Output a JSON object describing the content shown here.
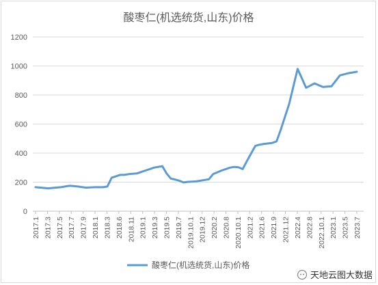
{
  "chart_data": {
    "type": "line",
    "title": "酸枣仁(机选统货,山东)价格",
    "xlabel": "",
    "ylabel": "",
    "ylim": [
      0,
      1200
    ],
    "yticks": [
      0,
      200,
      400,
      600,
      800,
      1000,
      1200
    ],
    "grid": true,
    "legend_position": "bottom",
    "series_color": "#5b9bd5",
    "tick_labels": [
      "2017.1",
      "2017.3",
      "2017.5",
      "2017.7",
      "2017.9",
      "2018.1",
      "2018.3",
      "2018.6",
      "2018.11",
      "2019.1",
      "2019.3",
      "2019.5",
      "2019.7",
      "2019.10.1",
      "2019.12",
      "2020.2",
      "2020.8",
      "2020.10.1",
      "2021.2",
      "2021.6",
      "2021.9",
      "2021.12",
      "2022.4",
      "2022.8",
      "2022.10.1",
      "2023.1",
      "2023.5",
      "2023.7"
    ],
    "series": [
      {
        "name": "酸枣仁(机选统货,山东)价格",
        "points": [
          [
            0,
            165
          ],
          [
            1,
            160
          ],
          [
            1.5,
            157
          ],
          [
            2,
            160
          ],
          [
            3,
            165
          ],
          [
            3.5,
            170
          ],
          [
            4,
            175
          ],
          [
            5,
            170
          ],
          [
            6,
            162
          ],
          [
            7,
            165
          ],
          [
            8,
            165
          ],
          [
            8.5,
            170
          ],
          [
            9,
            230
          ],
          [
            10,
            250
          ],
          [
            10.5,
            250
          ],
          [
            11,
            255
          ],
          [
            12,
            260
          ],
          [
            12.5,
            270
          ],
          [
            13,
            280
          ],
          [
            13.5,
            290
          ],
          [
            14,
            300
          ],
          [
            15,
            310
          ],
          [
            15.5,
            260
          ],
          [
            16,
            225
          ],
          [
            16.5,
            218
          ],
          [
            17,
            210
          ],
          [
            17.5,
            198
          ],
          [
            18,
            202
          ],
          [
            19,
            205
          ],
          [
            19.5,
            210
          ],
          [
            20,
            215
          ],
          [
            20.5,
            220
          ],
          [
            21,
            255
          ],
          [
            22,
            280
          ],
          [
            23,
            300
          ],
          [
            23.5,
            305
          ],
          [
            24,
            302
          ],
          [
            24.5,
            290
          ],
          [
            25,
            345
          ],
          [
            26,
            450
          ],
          [
            26.5,
            458
          ],
          [
            27,
            463
          ],
          [
            28,
            470
          ],
          [
            28.5,
            480
          ],
          [
            29,
            560
          ],
          [
            30,
            740
          ],
          [
            31,
            980
          ],
          [
            32,
            850
          ],
          [
            33,
            880
          ],
          [
            34,
            855
          ],
          [
            35,
            860
          ],
          [
            36,
            935
          ],
          [
            37,
            950
          ],
          [
            38,
            960
          ]
        ]
      }
    ]
  },
  "watermark": {
    "text": "天地云图大数据"
  }
}
